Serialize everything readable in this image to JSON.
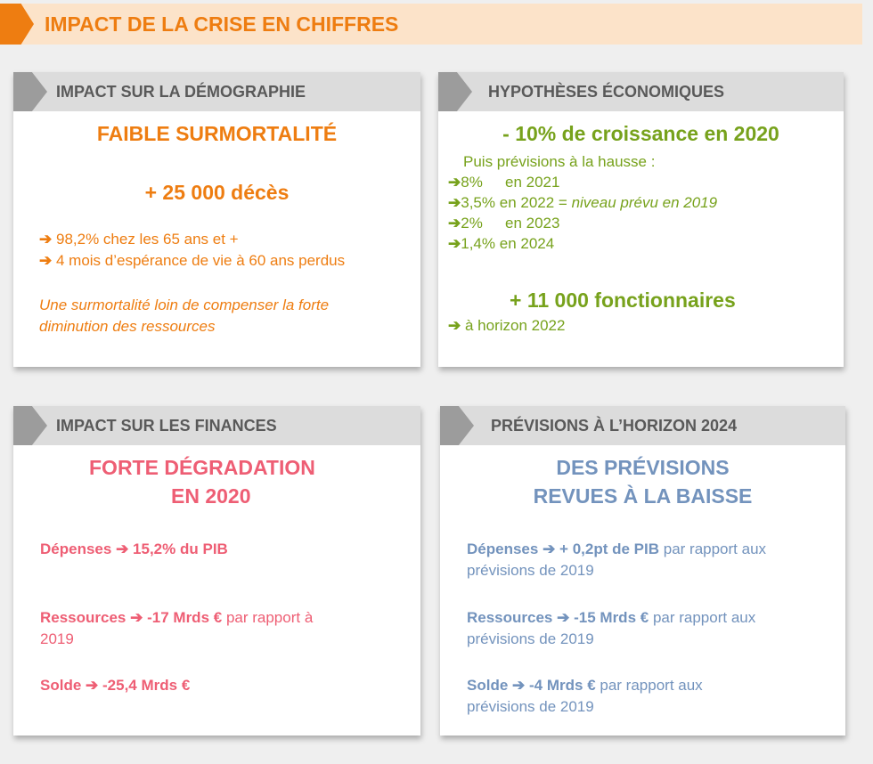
{
  "banner": {
    "title": "IMPACT DE LA CRISE EN CHIFFRES",
    "accent": "#ee7d11",
    "bg": "#fce3c9"
  },
  "arrow": "➔",
  "demography": {
    "header": "IMPACT SUR LA DÉMOGRAPHIE",
    "headline": "FAIBLE SURMORTALITÉ",
    "stat": "+ 25 000 décès",
    "bullets": [
      "98,2% chez les 65 ans et +",
      "4 mois d’espérance de vie à 60 ans perdus"
    ],
    "note_line1": "Une surmortalité loin de compenser la forte",
    "note_line2": "diminution des ressources",
    "color": "#ee7d11"
  },
  "economy": {
    "header": "HYPOTHÈSES ÉCONOMIQUES",
    "headline": "- 10% de croissance en 2020",
    "intro": "Puis prévisions à la hausse :",
    "forecasts": [
      {
        "pct": "8%",
        "text": "en 2021",
        "note": ""
      },
      {
        "pct": "3,5%",
        "text": "en 2022 =",
        "note": "niveau prévu en 2019"
      },
      {
        "pct": "2%",
        "text": "en 2023",
        "note": ""
      },
      {
        "pct": "1,4%",
        "text": "en 2024",
        "note": ""
      }
    ],
    "stat": "+ 11 000 fonctionnaires",
    "stat_note": "à horizon 2022",
    "color": "#77a21c"
  },
  "finances": {
    "header": "IMPACT SUR LES FINANCES",
    "headline_line1": "FORTE DÉGRADATION",
    "headline_line2": "EN 2020",
    "depenses": {
      "label": "Dépenses",
      "value": "15,2%",
      "unit": "du PIB"
    },
    "ressources": {
      "label": "Ressources",
      "value": "-17 Mrds €",
      "suffix_line1": "par rapport à",
      "suffix_line2": "2019"
    },
    "solde": {
      "label": "Solde",
      "value": "-25,4 Mrds €"
    },
    "color": "#ee5e74"
  },
  "forecast2024": {
    "header": "PRÉVISIONS À L’HORIZON 2024",
    "headline_line1": "DES PRÉVISIONS",
    "headline_line2": "REVUES À LA BAISSE",
    "depenses": {
      "label": "Dépenses",
      "value": "+ 0,2pt de PIB",
      "suffix_line1": "par rapport aux",
      "suffix_line2": "prévisions de 2019"
    },
    "ressources": {
      "label": "Ressources",
      "value": "-15 Mrds €",
      "suffix_line1": "par rapport aux",
      "suffix_line2": "prévisions de 2019"
    },
    "solde": {
      "label": "Solde",
      "value": "-4 Mrds €",
      "suffix_line1": "par rapport aux",
      "suffix_line2": "prévisions de 2019"
    },
    "color": "#7393bd"
  }
}
